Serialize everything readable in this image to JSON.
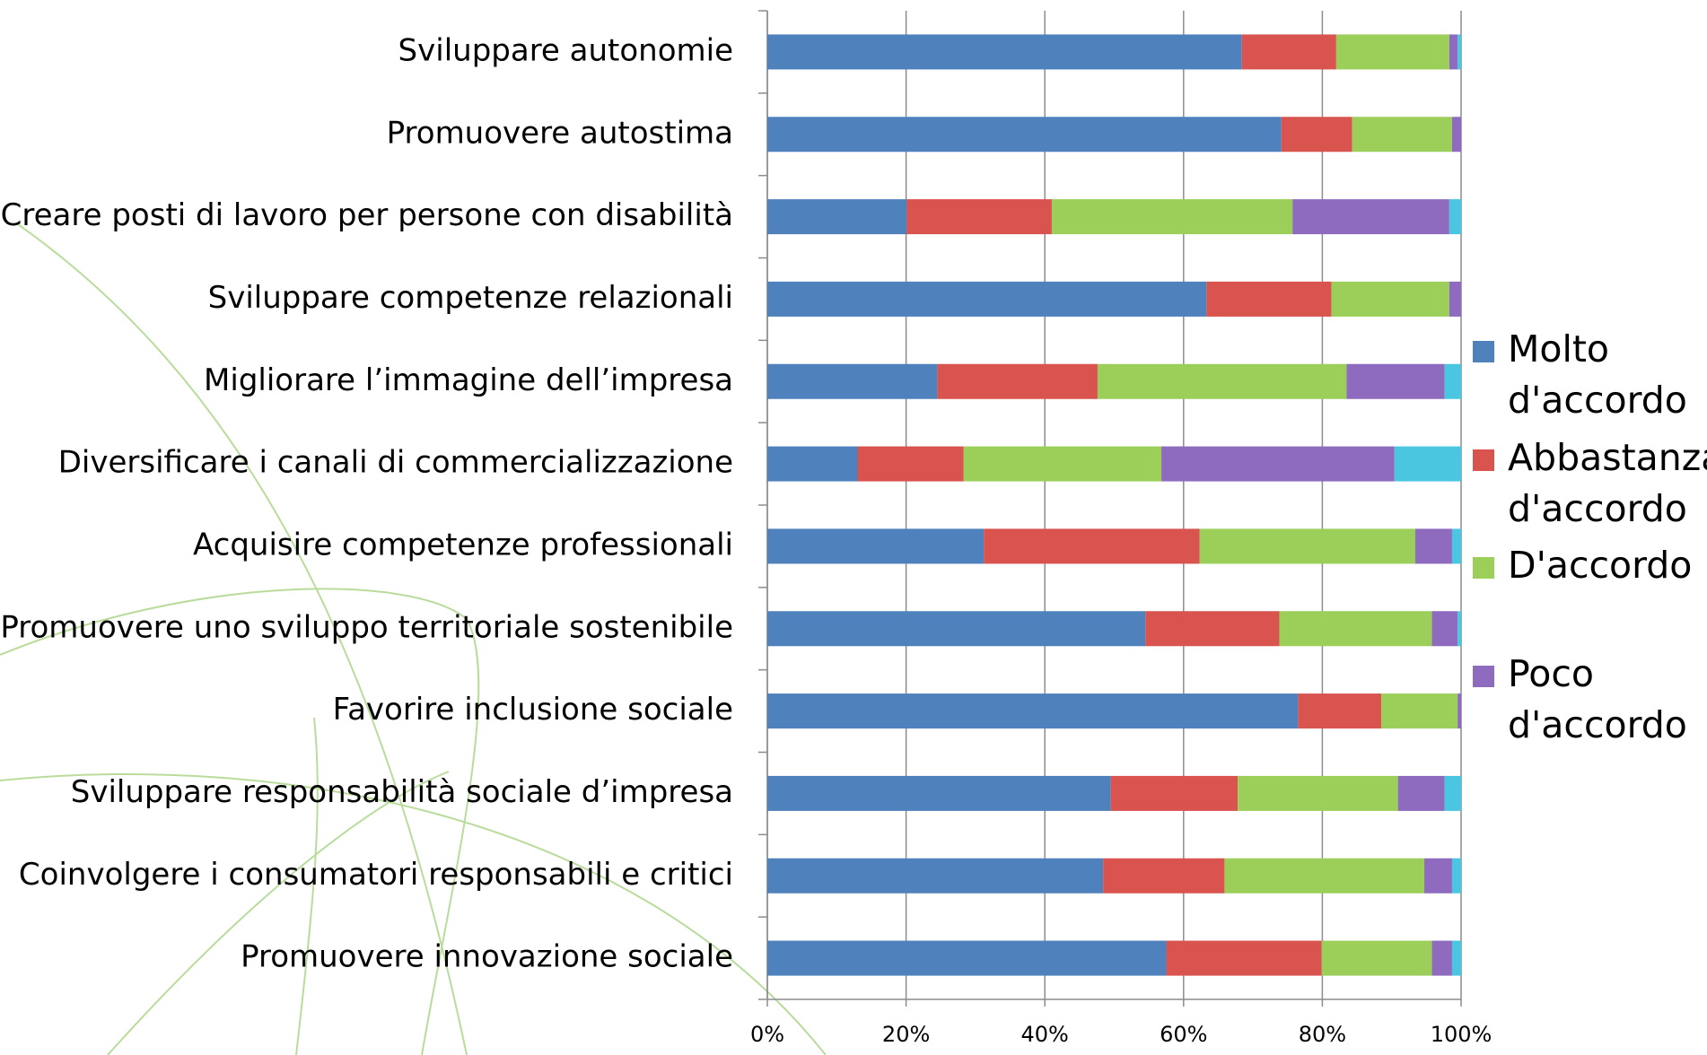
{
  "chart_data": {
    "type": "stacked-bar-horizontal",
    "categories": [
      "Sviluppare autonomie",
      "Promuovere autostima",
      "Creare posti di lavoro per persone con disabilità",
      "Sviluppare competenze relazionali",
      "Migliorare l’immagine dell’impresa",
      "Diversificare i canali di commercializzazione",
      "Acquisire competenze professionali",
      "Promuovere uno sviluppo territoriale sostenibile",
      "Favorire inclusione sociale",
      "Sviluppare responsabilità sociale d’impresa",
      "Coinvolgere i consumatori responsabili e critici",
      "Promuovere innovazione sociale"
    ],
    "series": [
      {
        "name": "Molto d'accordo",
        "color": "#4f81bd",
        "values": [
          68.4,
          74.1,
          20.1,
          63.3,
          24.5,
          13.0,
          31.2,
          54.5,
          76.5,
          49.5,
          48.4,
          57.5
        ]
      },
      {
        "name": "Abbastanza d'accordo",
        "color": "#d9534f",
        "values": [
          13.6,
          10.2,
          20.9,
          18.0,
          23.1,
          15.3,
          31.1,
          19.3,
          12.0,
          18.3,
          17.5,
          22.4
        ]
      },
      {
        "name": "D'accordo",
        "color": "#9bcf5a",
        "values": [
          16.3,
          14.4,
          34.7,
          17.0,
          35.9,
          28.5,
          31.1,
          22.0,
          11.0,
          23.1,
          28.8,
          15.9
        ]
      },
      {
        "name": "Poco d'accordo",
        "color": "#8e6bbf",
        "values": [
          1.2,
          1.3,
          22.6,
          1.7,
          14.1,
          33.6,
          5.3,
          3.7,
          0.5,
          6.7,
          4.0,
          2.9
        ]
      },
      {
        "name": null,
        "color": "#4bc6e0",
        "values": [
          0.5,
          0,
          1.7,
          0,
          2.4,
          9.6,
          1.3,
          0.5,
          0,
          2.4,
          1.3,
          1.3
        ]
      }
    ],
    "xlim": [
      0,
      100
    ],
    "xticks": [
      {
        "value": 0,
        "label": "0%"
      },
      {
        "value": 20,
        "label": "20%"
      },
      {
        "value": 40,
        "label": "40%"
      },
      {
        "value": 60,
        "label": "60%"
      },
      {
        "value": 80,
        "label": "80%"
      },
      {
        "value": 100,
        "label": "100%"
      }
    ],
    "grid": true
  }
}
